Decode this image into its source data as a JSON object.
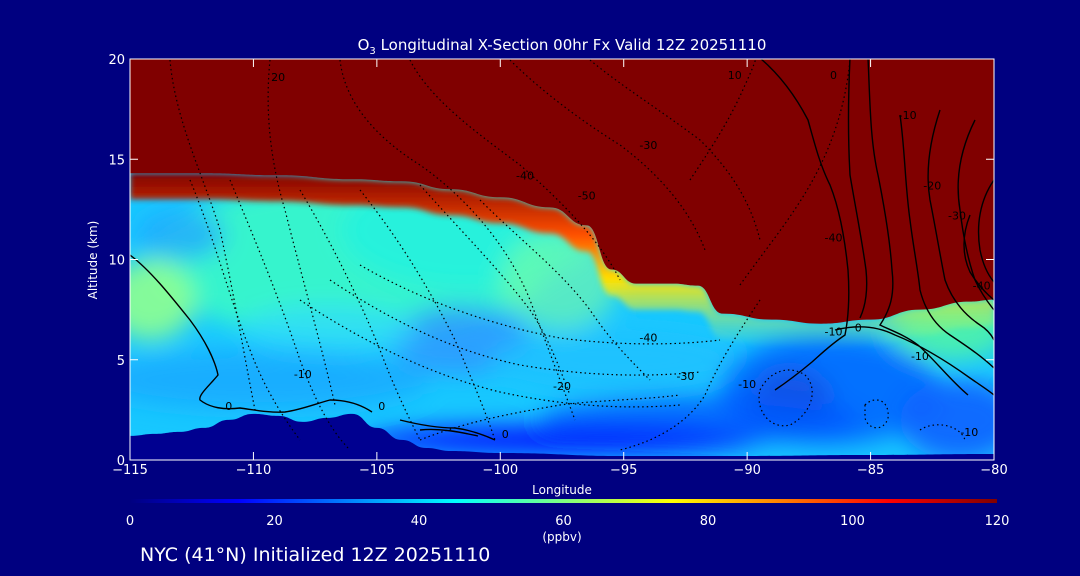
{
  "chart_data": {
    "type": "heatmap",
    "title": "O3 Longitudinal X-Section 00hr  Fx Valid 12Z 20251110",
    "title_species": "O",
    "title_subscript": "3",
    "title_rest": " Longitudinal X-Section 00hr  Fx Valid 12Z 20251110",
    "xlabel": "Longitude",
    "ylabel": "Altitude (km)",
    "xlim": [
      -115,
      -80
    ],
    "ylim": [
      0,
      20
    ],
    "x_ticks": [
      -115,
      -110,
      -105,
      -100,
      -95,
      -90,
      -85,
      -80
    ],
    "x_tick_labels": [
      "−115",
      "−110",
      "−105",
      "−100",
      "−95",
      "−90",
      "−85",
      "−80"
    ],
    "y_ticks": [
      0,
      5,
      10,
      15,
      20
    ],
    "y_tick_labels": [
      "0",
      "5",
      "10",
      "15",
      "20"
    ],
    "tropopause_height_km": [
      [
        -115,
        14.3
      ],
      [
        -112,
        14.3
      ],
      [
        -109,
        14.2
      ],
      [
        -106,
        14.0
      ],
      [
        -104,
        13.9
      ],
      [
        -102,
        13.5
      ],
      [
        -100,
        13.1
      ],
      [
        -98,
        12.6
      ],
      [
        -96.5,
        11.7
      ],
      [
        -95.5,
        9.5
      ],
      [
        -94.5,
        8.8
      ],
      [
        -93,
        8.8
      ],
      [
        -92,
        8.7
      ],
      [
        -91,
        7.3
      ],
      [
        -89,
        7.0
      ],
      [
        -87,
        6.8
      ],
      [
        -85,
        7.0
      ],
      [
        -83,
        7.5
      ],
      [
        -81,
        7.9
      ],
      [
        -80,
        8.0
      ]
    ],
    "terrain_height_km": [
      [
        -115,
        1.2
      ],
      [
        -114,
        1.3
      ],
      [
        -113,
        1.4
      ],
      [
        -112,
        1.6
      ],
      [
        -111,
        2.0
      ],
      [
        -110,
        2.3
      ],
      [
        -109,
        2.2
      ],
      [
        -108,
        1.9
      ],
      [
        -107,
        2.1
      ],
      [
        -106,
        2.3
      ],
      [
        -105,
        1.6
      ],
      [
        -104,
        1.0
      ],
      [
        -103,
        0.6
      ],
      [
        -102,
        0.45
      ],
      [
        -100,
        0.35
      ],
      [
        -95,
        0.2
      ],
      [
        -90,
        0.2
      ],
      [
        -85,
        0.25
      ],
      [
        -80,
        0.3
      ]
    ],
    "colorbar": {
      "label": "(ppbv)",
      "min": 0,
      "max": 120,
      "ticks": [
        0,
        20,
        40,
        60,
        80,
        100,
        120
      ],
      "tick_labels": [
        "0",
        "20",
        "40",
        "60",
        "80",
        "100",
        "120"
      ],
      "colors": [
        "#000080",
        "#0000ff",
        "#0080ff",
        "#00ffff",
        "#80ff80",
        "#ffff00",
        "#ff8000",
        "#ff0000",
        "#800000"
      ]
    },
    "contour_labels": [
      {
        "text": "20",
        "lon": -109,
        "alt": 18.9
      },
      {
        "text": "10",
        "lon": -90.5,
        "alt": 19.0
      },
      {
        "text": "0",
        "lon": -86.5,
        "alt": 19.0
      },
      {
        "text": "-30",
        "lon": -94,
        "alt": 15.5
      },
      {
        "text": "-40",
        "lon": -99,
        "alt": 14.0
      },
      {
        "text": "-50",
        "lon": -96.5,
        "alt": 13.0
      },
      {
        "text": "-40",
        "lon": -86.5,
        "alt": 10.9
      },
      {
        "text": "-10",
        "lon": -83.5,
        "alt": 17.0
      },
      {
        "text": "-20",
        "lon": -82.5,
        "alt": 13.5
      },
      {
        "text": "-30",
        "lon": -81.5,
        "alt": 12.0
      },
      {
        "text": "-40",
        "lon": -80.5,
        "alt": 8.5
      },
      {
        "text": "-40",
        "lon": -94,
        "alt": 5.9
      },
      {
        "text": "-30",
        "lon": -92.5,
        "alt": 4.0
      },
      {
        "text": "-20",
        "lon": -97.5,
        "alt": 3.5
      },
      {
        "text": "-10",
        "lon": -108,
        "alt": 4.1
      },
      {
        "text": "-10",
        "lon": -90,
        "alt": 3.6
      },
      {
        "text": "-10",
        "lon": -86.5,
        "alt": 6.2
      },
      {
        "text": "-10",
        "lon": -83,
        "alt": 5.0
      },
      {
        "text": "0",
        "lon": -111,
        "alt": 2.5
      },
      {
        "text": "0",
        "lon": -104.8,
        "alt": 2.5
      },
      {
        "text": "0",
        "lon": -99.8,
        "alt": 1.1
      },
      {
        "text": "0",
        "lon": -85.5,
        "alt": 6.4
      },
      {
        "text": "-10",
        "lon": -81,
        "alt": 1.2
      }
    ]
  },
  "footer": {
    "caption": "NYC (41°N) Initialized 12Z 20251110"
  }
}
